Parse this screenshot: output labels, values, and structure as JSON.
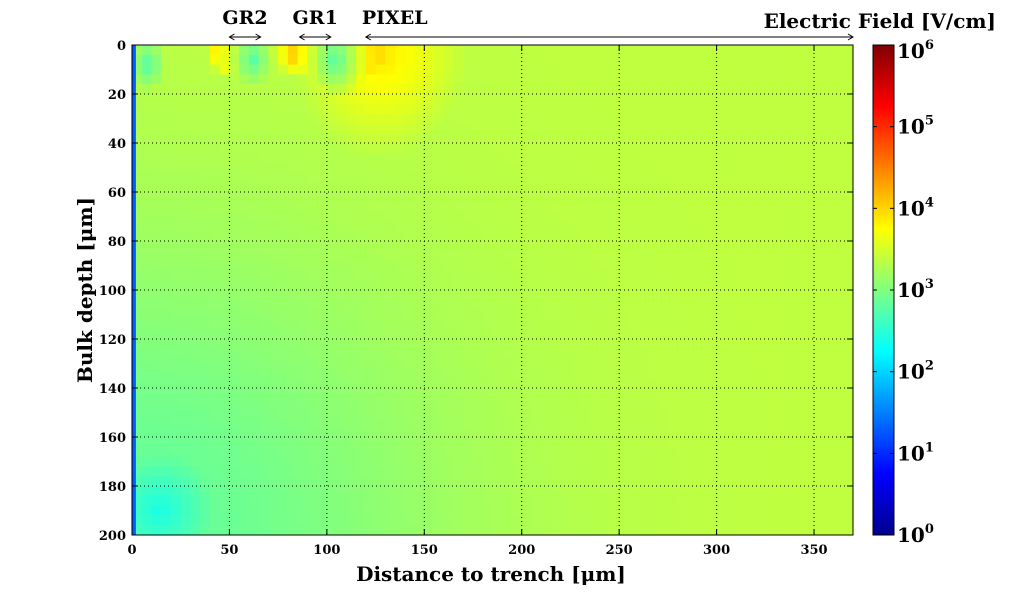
{
  "chart_data": {
    "type": "heatmap",
    "title": "Electric Field [V/cm]",
    "xlabel": "Distance to trench [μm]",
    "ylabel": "Bulk depth [μm]",
    "xlim": [
      0,
      370
    ],
    "ylim": [
      0,
      200
    ],
    "y_direction": "top-to-bottom",
    "x_ticks": [
      0,
      50,
      100,
      150,
      200,
      250,
      300,
      350
    ],
    "x_tick_labels": [
      "0",
      "50",
      "100",
      "150",
      "200",
      "250",
      "300",
      "350"
    ],
    "y_ticks": [
      0,
      20,
      40,
      60,
      80,
      100,
      120,
      140,
      160,
      180,
      200
    ],
    "y_tick_labels": [
      "0",
      "20",
      "40",
      "60",
      "80",
      "100",
      "120",
      "140",
      "160",
      "180",
      "200"
    ],
    "grid": true,
    "colormap": "jet",
    "colorbar": {
      "scale": "log",
      "range": [
        1,
        1000000
      ],
      "base": "10",
      "exponents": [
        "0",
        "1",
        "2",
        "3",
        "4",
        "5",
        "6"
      ],
      "position": "right"
    },
    "regions": [
      {
        "label": "GR2",
        "x_range": [
          50,
          66
        ]
      },
      {
        "label": "GR1",
        "x_range": [
          86,
          102
        ]
      },
      {
        "label": "PIXEL",
        "x_range": [
          120,
          370
        ]
      }
    ],
    "field_features": [
      {
        "name": "background bulk field",
        "value_v_per_cm": 2500
      },
      {
        "name": "GR2 peak",
        "x": 50,
        "y": 2,
        "value_v_per_cm": 30000
      },
      {
        "name": "GR1 peak",
        "x": 84,
        "y": 2,
        "value_v_per_cm": 30000
      },
      {
        "name": "PIXEL peak",
        "x": 122,
        "y": 4,
        "value_v_per_cm": 30000
      },
      {
        "name": "low field corner",
        "x": 14,
        "y": 190,
        "value_v_per_cm": 250
      },
      {
        "name": "trench edge",
        "x": 1,
        "value_v_per_cm": 10
      }
    ]
  }
}
